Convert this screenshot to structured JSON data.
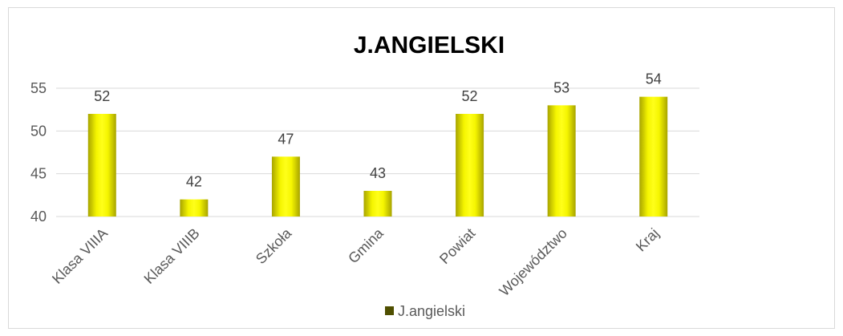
{
  "chart_data": {
    "type": "bar",
    "title": "J.ANGIELSKI",
    "categories": [
      "Klasa VIIIA",
      "Klasa VIIIB",
      "Szkoła",
      "Gmina",
      "Powiat",
      "Województwo",
      "Kraj"
    ],
    "series": [
      {
        "name": "J.angielski",
        "values": [
          52,
          42,
          47,
          43,
          52,
          53,
          54
        ]
      }
    ],
    "data_labels": [
      "52",
      "42",
      "47",
      "43",
      "52",
      "53",
      "54"
    ],
    "y_ticks": [
      "40",
      "45",
      "50",
      "55"
    ],
    "ylim": [
      40,
      55
    ],
    "grid": true,
    "legend_position": "bottom",
    "colors": {
      "bar_light": "#ffff00",
      "bar_dark": "#9e9a0a",
      "legend_marker": "#4f4f00",
      "gridline": "#d9d9d9"
    }
  }
}
